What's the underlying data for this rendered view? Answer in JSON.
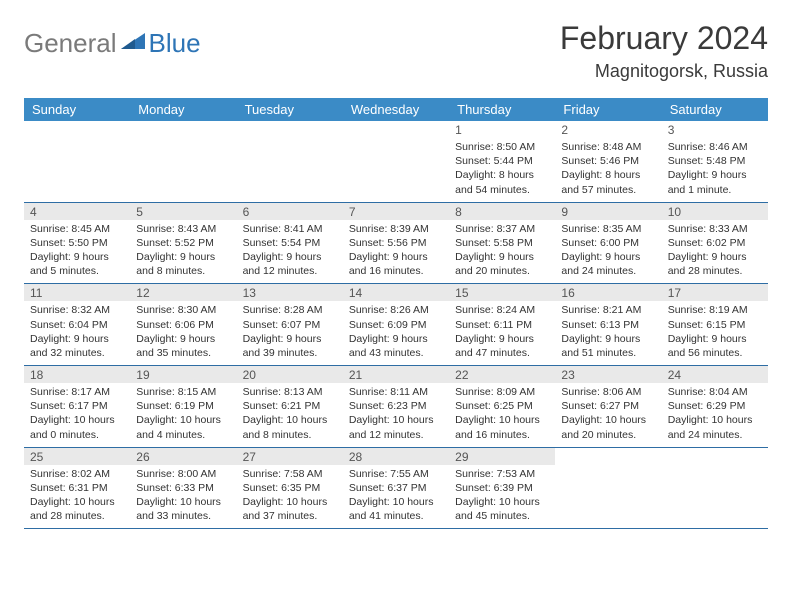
{
  "logo": {
    "general": "General",
    "blue": "Blue"
  },
  "title": "February 2024",
  "location": "Magnitogorsk, Russia",
  "colors": {
    "header_bg": "#3b8bc6",
    "header_text": "#ffffff",
    "num_bg": "#e9e9e9",
    "border": "#2e6da4"
  },
  "day_headers": [
    "Sunday",
    "Monday",
    "Tuesday",
    "Wednesday",
    "Thursday",
    "Friday",
    "Saturday"
  ],
  "weeks": [
    [
      {
        "n": "",
        "sr": "",
        "ss": "",
        "dl": ""
      },
      {
        "n": "",
        "sr": "",
        "ss": "",
        "dl": ""
      },
      {
        "n": "",
        "sr": "",
        "ss": "",
        "dl": ""
      },
      {
        "n": "",
        "sr": "",
        "ss": "",
        "dl": ""
      },
      {
        "n": "1",
        "sr": "Sunrise: 8:50 AM",
        "ss": "Sunset: 5:44 PM",
        "dl": "Daylight: 8 hours and 54 minutes."
      },
      {
        "n": "2",
        "sr": "Sunrise: 8:48 AM",
        "ss": "Sunset: 5:46 PM",
        "dl": "Daylight: 8 hours and 57 minutes."
      },
      {
        "n": "3",
        "sr": "Sunrise: 8:46 AM",
        "ss": "Sunset: 5:48 PM",
        "dl": "Daylight: 9 hours and 1 minute."
      }
    ],
    [
      {
        "n": "4",
        "sr": "Sunrise: 8:45 AM",
        "ss": "Sunset: 5:50 PM",
        "dl": "Daylight: 9 hours and 5 minutes."
      },
      {
        "n": "5",
        "sr": "Sunrise: 8:43 AM",
        "ss": "Sunset: 5:52 PM",
        "dl": "Daylight: 9 hours and 8 minutes."
      },
      {
        "n": "6",
        "sr": "Sunrise: 8:41 AM",
        "ss": "Sunset: 5:54 PM",
        "dl": "Daylight: 9 hours and 12 minutes."
      },
      {
        "n": "7",
        "sr": "Sunrise: 8:39 AM",
        "ss": "Sunset: 5:56 PM",
        "dl": "Daylight: 9 hours and 16 minutes."
      },
      {
        "n": "8",
        "sr": "Sunrise: 8:37 AM",
        "ss": "Sunset: 5:58 PM",
        "dl": "Daylight: 9 hours and 20 minutes."
      },
      {
        "n": "9",
        "sr": "Sunrise: 8:35 AM",
        "ss": "Sunset: 6:00 PM",
        "dl": "Daylight: 9 hours and 24 minutes."
      },
      {
        "n": "10",
        "sr": "Sunrise: 8:33 AM",
        "ss": "Sunset: 6:02 PM",
        "dl": "Daylight: 9 hours and 28 minutes."
      }
    ],
    [
      {
        "n": "11",
        "sr": "Sunrise: 8:32 AM",
        "ss": "Sunset: 6:04 PM",
        "dl": "Daylight: 9 hours and 32 minutes."
      },
      {
        "n": "12",
        "sr": "Sunrise: 8:30 AM",
        "ss": "Sunset: 6:06 PM",
        "dl": "Daylight: 9 hours and 35 minutes."
      },
      {
        "n": "13",
        "sr": "Sunrise: 8:28 AM",
        "ss": "Sunset: 6:07 PM",
        "dl": "Daylight: 9 hours and 39 minutes."
      },
      {
        "n": "14",
        "sr": "Sunrise: 8:26 AM",
        "ss": "Sunset: 6:09 PM",
        "dl": "Daylight: 9 hours and 43 minutes."
      },
      {
        "n": "15",
        "sr": "Sunrise: 8:24 AM",
        "ss": "Sunset: 6:11 PM",
        "dl": "Daylight: 9 hours and 47 minutes."
      },
      {
        "n": "16",
        "sr": "Sunrise: 8:21 AM",
        "ss": "Sunset: 6:13 PM",
        "dl": "Daylight: 9 hours and 51 minutes."
      },
      {
        "n": "17",
        "sr": "Sunrise: 8:19 AM",
        "ss": "Sunset: 6:15 PM",
        "dl": "Daylight: 9 hours and 56 minutes."
      }
    ],
    [
      {
        "n": "18",
        "sr": "Sunrise: 8:17 AM",
        "ss": "Sunset: 6:17 PM",
        "dl": "Daylight: 10 hours and 0 minutes."
      },
      {
        "n": "19",
        "sr": "Sunrise: 8:15 AM",
        "ss": "Sunset: 6:19 PM",
        "dl": "Daylight: 10 hours and 4 minutes."
      },
      {
        "n": "20",
        "sr": "Sunrise: 8:13 AM",
        "ss": "Sunset: 6:21 PM",
        "dl": "Daylight: 10 hours and 8 minutes."
      },
      {
        "n": "21",
        "sr": "Sunrise: 8:11 AM",
        "ss": "Sunset: 6:23 PM",
        "dl": "Daylight: 10 hours and 12 minutes."
      },
      {
        "n": "22",
        "sr": "Sunrise: 8:09 AM",
        "ss": "Sunset: 6:25 PM",
        "dl": "Daylight: 10 hours and 16 minutes."
      },
      {
        "n": "23",
        "sr": "Sunrise: 8:06 AM",
        "ss": "Sunset: 6:27 PM",
        "dl": "Daylight: 10 hours and 20 minutes."
      },
      {
        "n": "24",
        "sr": "Sunrise: 8:04 AM",
        "ss": "Sunset: 6:29 PM",
        "dl": "Daylight: 10 hours and 24 minutes."
      }
    ],
    [
      {
        "n": "25",
        "sr": "Sunrise: 8:02 AM",
        "ss": "Sunset: 6:31 PM",
        "dl": "Daylight: 10 hours and 28 minutes."
      },
      {
        "n": "26",
        "sr": "Sunrise: 8:00 AM",
        "ss": "Sunset: 6:33 PM",
        "dl": "Daylight: 10 hours and 33 minutes."
      },
      {
        "n": "27",
        "sr": "Sunrise: 7:58 AM",
        "ss": "Sunset: 6:35 PM",
        "dl": "Daylight: 10 hours and 37 minutes."
      },
      {
        "n": "28",
        "sr": "Sunrise: 7:55 AM",
        "ss": "Sunset: 6:37 PM",
        "dl": "Daylight: 10 hours and 41 minutes."
      },
      {
        "n": "29",
        "sr": "Sunrise: 7:53 AM",
        "ss": "Sunset: 6:39 PM",
        "dl": "Daylight: 10 hours and 45 minutes."
      },
      {
        "n": "",
        "sr": "",
        "ss": "",
        "dl": ""
      },
      {
        "n": "",
        "sr": "",
        "ss": "",
        "dl": ""
      }
    ]
  ]
}
